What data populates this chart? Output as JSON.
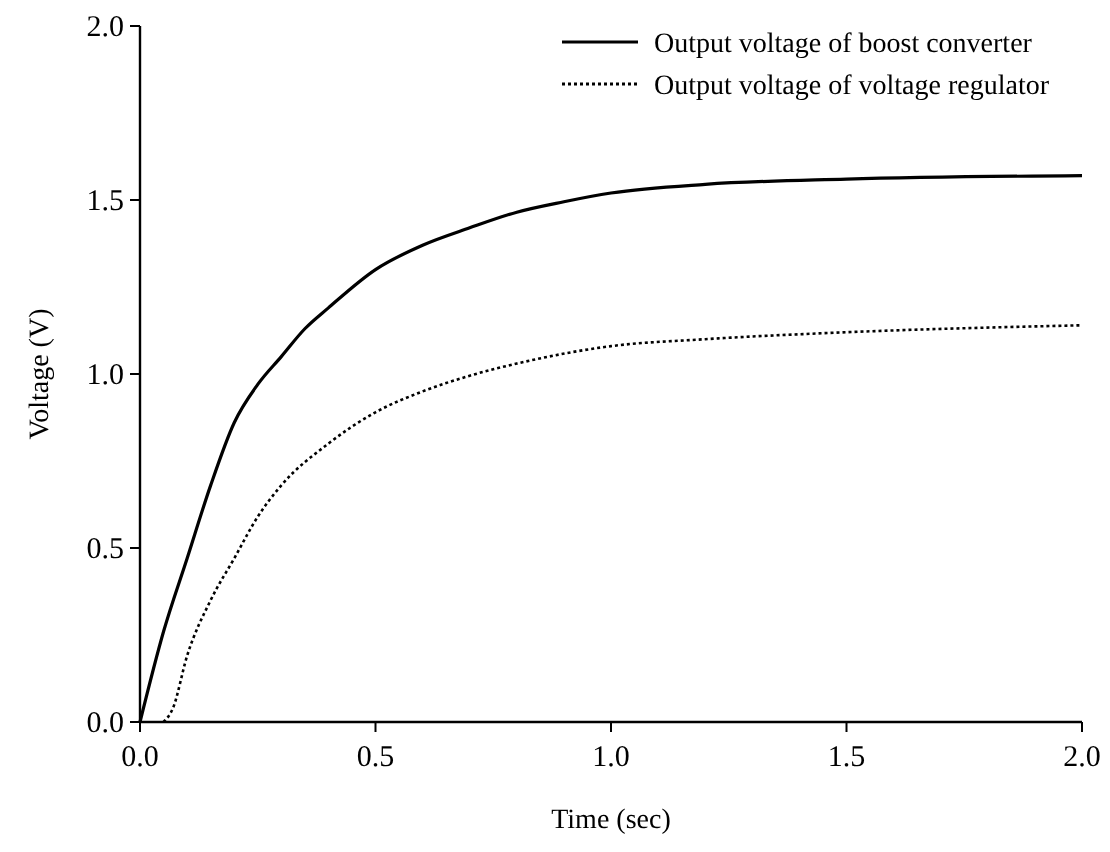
{
  "chart_data": {
    "type": "line",
    "xlabel": "Time (sec)",
    "ylabel": "Voltage (V)",
    "xlim": [
      0,
      2
    ],
    "ylim": [
      0,
      2
    ],
    "xticks": [
      {
        "value": 0,
        "label": "0.0"
      },
      {
        "value": 0.5,
        "label": "0.5"
      },
      {
        "value": 1,
        "label": "1.0"
      },
      {
        "value": 1.5,
        "label": "1.5"
      },
      {
        "value": 2,
        "label": "2.0"
      }
    ],
    "yticks": [
      {
        "value": 0,
        "label": "0.0"
      },
      {
        "value": 0.5,
        "label": "0.5"
      },
      {
        "value": 1,
        "label": "1.0"
      },
      {
        "value": 1.5,
        "label": "1.5"
      },
      {
        "value": 2,
        "label": "2.0"
      }
    ],
    "grid": false,
    "legend": "top right",
    "marker": "none",
    "series": [
      {
        "name": "Output voltage of boost converter",
        "color": "#000000",
        "line_style": "solid",
        "x": [
          0,
          0.05,
          0.1,
          0.15,
          0.2,
          0.25,
          0.3,
          0.35,
          0.4,
          0.5,
          0.6,
          0.7,
          0.8,
          0.9,
          1.0,
          1.2,
          1.5,
          2.0
        ],
        "values": [
          0,
          0.26,
          0.47,
          0.68,
          0.86,
          0.97,
          1.05,
          1.13,
          1.19,
          1.3,
          1.37,
          1.42,
          1.465,
          1.495,
          1.52,
          1.545,
          1.56,
          1.57
        ]
      },
      {
        "name": "Output voltage of voltage regulator",
        "color": "#000000",
        "line_style": "dotted",
        "x": [
          0.05,
          0.07,
          0.1,
          0.15,
          0.2,
          0.25,
          0.3,
          0.4,
          0.5,
          0.6,
          0.7,
          0.8,
          1.0,
          1.2,
          1.5,
          2.0
        ],
        "values": [
          0,
          0.04,
          0.19,
          0.35,
          0.47,
          0.59,
          0.68,
          0.8,
          0.89,
          0.95,
          0.995,
          1.03,
          1.08,
          1.1,
          1.12,
          1.14
        ]
      }
    ]
  }
}
